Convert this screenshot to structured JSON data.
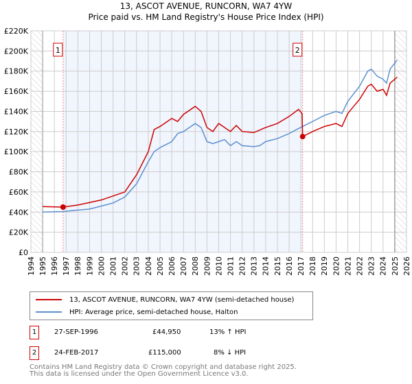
{
  "chart_data": {
    "type": "line",
    "title": "13, ASCOT AVENUE, RUNCORN, WA7 4YW",
    "subtitle": "Price paid vs. HM Land Registry's House Price Index (HPI)",
    "xlim": [
      1994,
      2026
    ],
    "ylim": [
      0,
      220000
    ],
    "x_ticks": [
      "1994",
      "1995",
      "1996",
      "1997",
      "1998",
      "1999",
      "2000",
      "2001",
      "2002",
      "2003",
      "2004",
      "2005",
      "2006",
      "2007",
      "2008",
      "2009",
      "2010",
      "2011",
      "2012",
      "2013",
      "2014",
      "2015",
      "2016",
      "2017",
      "2018",
      "2019",
      "2020",
      "2021",
      "2022",
      "2023",
      "2024",
      "2025",
      "2026"
    ],
    "y_ticks": [
      "£0",
      "£20K",
      "£40K",
      "£60K",
      "£80K",
      "£100K",
      "£120K",
      "£140K",
      "£160K",
      "£180K",
      "£200K",
      "£220K"
    ],
    "grid": true,
    "series": [
      {
        "name": "13, ASCOT AVENUE, RUNCORN, WA7 4YW (semi-detached house)",
        "color": "#cc0000",
        "x": [
          1995,
          1996.74,
          1998,
          2000,
          2002,
          2003,
          2004,
          2004.5,
          2005,
          2006,
          2006.5,
          2007,
          2008,
          2008.5,
          2009,
          2009.5,
          2010,
          2011,
          2011.5,
          2012,
          2013,
          2014,
          2015,
          2016,
          2016.8,
          2017.1,
          2017.15,
          2018,
          2019,
          2020,
          2020.5,
          2021,
          2022,
          2022.7,
          2023,
          2023.5,
          2024,
          2024.3,
          2024.6,
          2025.2
        ],
        "y": [
          45500,
          44950,
          47000,
          52000,
          60000,
          77000,
          100000,
          122000,
          125000,
          133000,
          130000,
          137000,
          145000,
          140000,
          124000,
          120000,
          128000,
          120000,
          126000,
          120000,
          119000,
          124000,
          128000,
          135000,
          142000,
          138000,
          115000,
          120000,
          125000,
          128000,
          125000,
          138000,
          152000,
          165000,
          167000,
          160000,
          162000,
          156000,
          168000,
          174000
        ]
      },
      {
        "name": "HPI: Average price, semi-detached house, Halton",
        "color": "#5b8fd0",
        "x": [
          1995,
          1996.74,
          1998,
          1999,
          2000,
          2001,
          2002,
          2003,
          2004,
          2004.5,
          2005,
          2006,
          2006.5,
          2007,
          2007.5,
          2008,
          2008.5,
          2009,
          2009.5,
          2010,
          2010.5,
          2011,
          2011.5,
          2012,
          2013,
          2013.5,
          2014,
          2015,
          2016,
          2016.8,
          2017.15,
          2018,
          2019,
          2020,
          2020.5,
          2021,
          2022,
          2022.7,
          2023,
          2023.5,
          2024,
          2024.3,
          2024.6,
          2025.2
        ],
        "y": [
          40000,
          40500,
          42000,
          43000,
          46000,
          49000,
          55000,
          68000,
          90000,
          100000,
          104000,
          110000,
          118000,
          120000,
          124000,
          128000,
          124000,
          110000,
          108000,
          110000,
          112000,
          106000,
          110000,
          106000,
          105000,
          106000,
          110000,
          113000,
          118000,
          123000,
          125000,
          130000,
          136000,
          140000,
          138000,
          150000,
          165000,
          180000,
          182000,
          175000,
          172000,
          168000,
          182000,
          191000
        ]
      }
    ],
    "sales": [
      {
        "label": "1",
        "date": "27-SEP-1996",
        "x": 1996.74,
        "price": "£44,950",
        "price_value": 44950,
        "hpi": "13% ↑ HPI"
      },
      {
        "label": "2",
        "date": "24-FEB-2017",
        "x": 2017.15,
        "price": "£115,000",
        "price_value": 115000,
        "hpi": "8% ↓ HPI"
      }
    ],
    "legend_placement": "bottom"
  },
  "footer": {
    "line1": "Contains HM Land Registry data © Crown copyright and database right 2025.",
    "line2": "This data is licensed under the Open Government Licence v3.0."
  }
}
